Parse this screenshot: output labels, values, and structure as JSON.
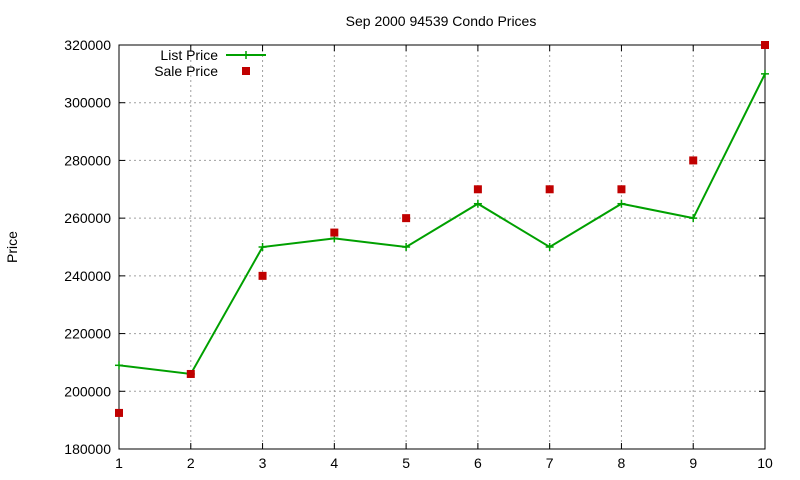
{
  "chart_data": {
    "type": "line",
    "title": "Sep 2000 94539 Condo Prices",
    "xlabel": "",
    "ylabel": "Price",
    "xlim": [
      1,
      10
    ],
    "ylim": [
      180000,
      320000
    ],
    "x_ticks": [
      "1",
      "2",
      "3",
      "4",
      "5",
      "6",
      "7",
      "8",
      "9",
      "10"
    ],
    "y_ticks": [
      "180000",
      "200000",
      "220000",
      "240000",
      "260000",
      "280000",
      "300000",
      "320000"
    ],
    "grid": true,
    "legend_position": "top-left",
    "x": [
      1,
      2,
      3,
      4,
      5,
      6,
      7,
      8,
      9,
      10
    ],
    "series": [
      {
        "name": "List Price",
        "style": "lines+points",
        "marker": "plus",
        "color": "#00a000",
        "values": [
          209000,
          206000,
          250000,
          253000,
          250000,
          265000,
          250000,
          265000,
          260000,
          310000
        ]
      },
      {
        "name": "Sale Price",
        "style": "points",
        "marker": "square",
        "color": "#c00000",
        "values": [
          192500,
          206000,
          240000,
          255000,
          260000,
          270000,
          270000,
          270000,
          280000,
          320000
        ]
      }
    ]
  }
}
